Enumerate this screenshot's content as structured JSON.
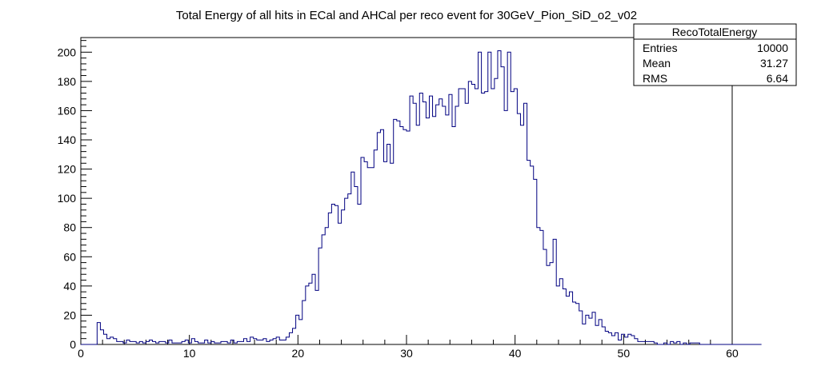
{
  "chart_data": {
    "type": "bar",
    "title": "Total Energy of all hits in ECal and AHCal per reco event for 30GeV_Pion_SiD_o2_v02",
    "xlabel": "",
    "ylabel": "",
    "xlim": [
      0,
      60
    ],
    "ylim": [
      0,
      210
    ],
    "x_ticks": [
      0,
      10,
      20,
      30,
      40,
      50,
      60
    ],
    "y_ticks": [
      0,
      20,
      40,
      60,
      80,
      100,
      120,
      140,
      160,
      180,
      200
    ],
    "bin_width": 0.3,
    "bin_start": 0,
    "line_color": "#000080",
    "grid": false,
    "values": [
      0,
      0,
      0,
      0,
      0,
      15,
      10,
      7,
      4,
      5,
      4,
      2,
      2,
      1,
      3,
      2,
      2,
      1,
      2,
      1,
      2,
      3,
      2,
      1,
      2,
      2,
      1,
      3,
      1,
      1,
      1,
      2,
      3,
      1,
      4,
      2,
      1,
      1,
      3,
      1,
      2,
      1,
      1,
      2,
      2,
      1,
      3,
      1,
      2,
      2,
      4,
      2,
      5,
      4,
      3,
      3,
      4,
      2,
      3,
      4,
      5,
      3,
      3,
      5,
      8,
      11,
      20,
      17,
      30,
      40,
      42,
      48,
      37,
      66,
      75,
      80,
      90,
      96,
      95,
      83,
      92,
      100,
      103,
      118,
      108,
      96,
      128,
      125,
      121,
      121,
      133,
      145,
      147,
      125,
      137,
      124,
      154,
      153,
      149,
      147,
      146,
      170,
      165,
      150,
      172,
      166,
      155,
      170,
      156,
      164,
      168,
      163,
      157,
      171,
      149,
      163,
      175,
      175,
      165,
      180,
      178,
      175,
      200,
      172,
      173,
      200,
      175,
      182,
      201,
      190,
      160,
      200,
      173,
      175,
      158,
      150,
      165,
      126,
      122,
      113,
      80,
      78,
      65,
      54,
      56,
      72,
      40,
      45,
      38,
      33,
      36,
      29,
      28,
      23,
      14,
      20,
      18,
      22,
      13,
      17,
      12,
      9,
      8,
      6,
      8,
      3,
      7,
      5,
      7,
      6,
      4,
      2,
      2,
      2,
      2,
      2,
      1,
      0,
      0,
      1,
      0,
      2,
      1,
      2,
      0,
      1,
      0,
      1,
      1,
      1,
      0,
      0,
      0,
      0,
      0,
      0,
      0,
      0,
      0,
      0,
      0,
      0,
      0,
      0,
      0,
      0,
      0,
      0,
      0
    ]
  },
  "stats_box": {
    "name": "RecoTotalEnergy",
    "rows": [
      {
        "label": "Entries",
        "value": "10000"
      },
      {
        "label": "Mean",
        "value": "31.27"
      },
      {
        "label": "RMS",
        "value": "6.64"
      }
    ]
  }
}
